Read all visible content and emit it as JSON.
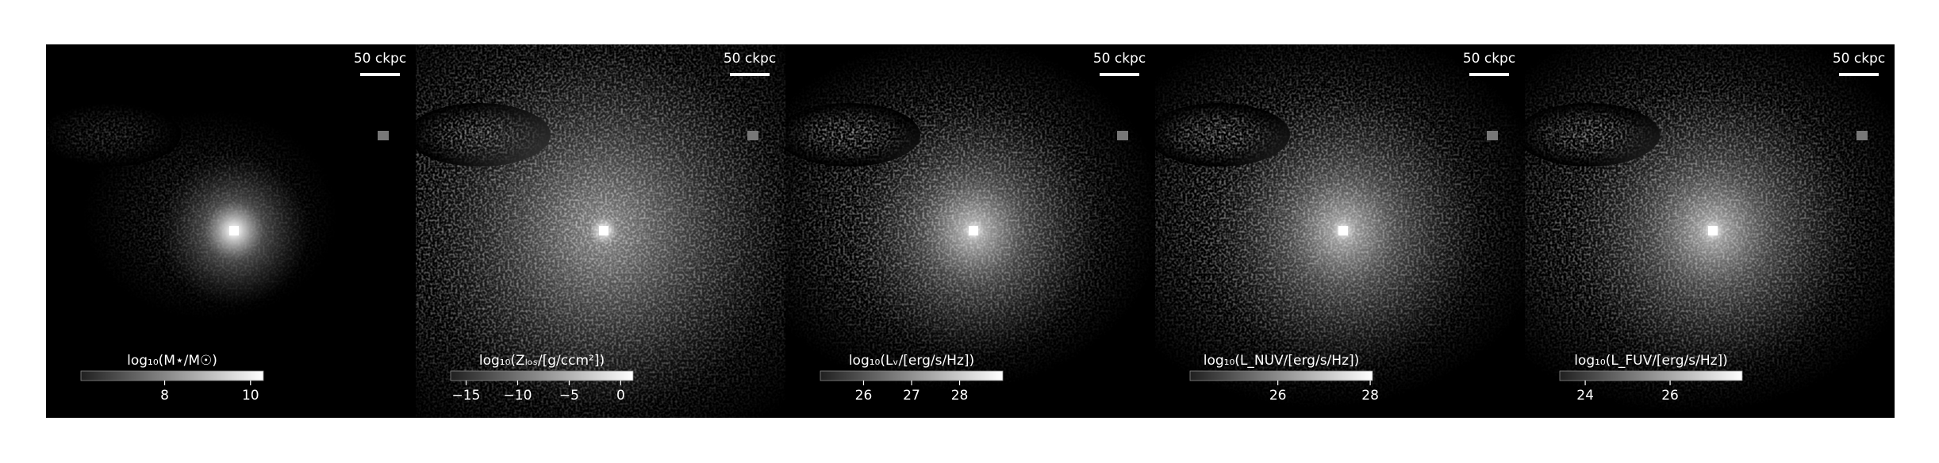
{
  "chart_data": [
    {
      "type": "image",
      "scale_bar_label": "50 ckpc",
      "xlabel": "log₁₀(M⋆/M☉)",
      "xlim": [
        6.05,
        10.3
      ],
      "xticks": [
        8,
        10
      ]
    },
    {
      "type": "image",
      "scale_bar_label": "50 ckpc",
      "xlabel": "log₁₀(Zₗₒₛ/[g/ccm²])",
      "xlim": [
        -16.5,
        1.2
      ],
      "xticks": [
        {
          "value": -15,
          "label": "−15"
        },
        {
          "value": -10,
          "label": "−10"
        },
        {
          "value": -5,
          "label": "−5"
        },
        0
      ]
    },
    {
      "type": "image",
      "scale_bar_label": "50 ckpc",
      "xlabel": "log₁₀(Lᵥ/[erg/s/Hz])",
      "xlim": [
        25.1,
        28.9
      ],
      "xticks": [
        26,
        27,
        28
      ]
    },
    {
      "type": "image",
      "scale_bar_label": "50 ckpc",
      "xlabel": "log₁₀(L_NUV/[erg/s/Hz])",
      "xlim": [
        24.1,
        28.05
      ],
      "xticks": [
        26,
        28
      ]
    },
    {
      "type": "image",
      "scale_bar_label": "50 ckpc",
      "xlabel": "log₁₀(L_FUV/[erg/s/Hz])",
      "xlim": [
        23.4,
        27.7
      ],
      "xticks": [
        24,
        26
      ]
    }
  ]
}
